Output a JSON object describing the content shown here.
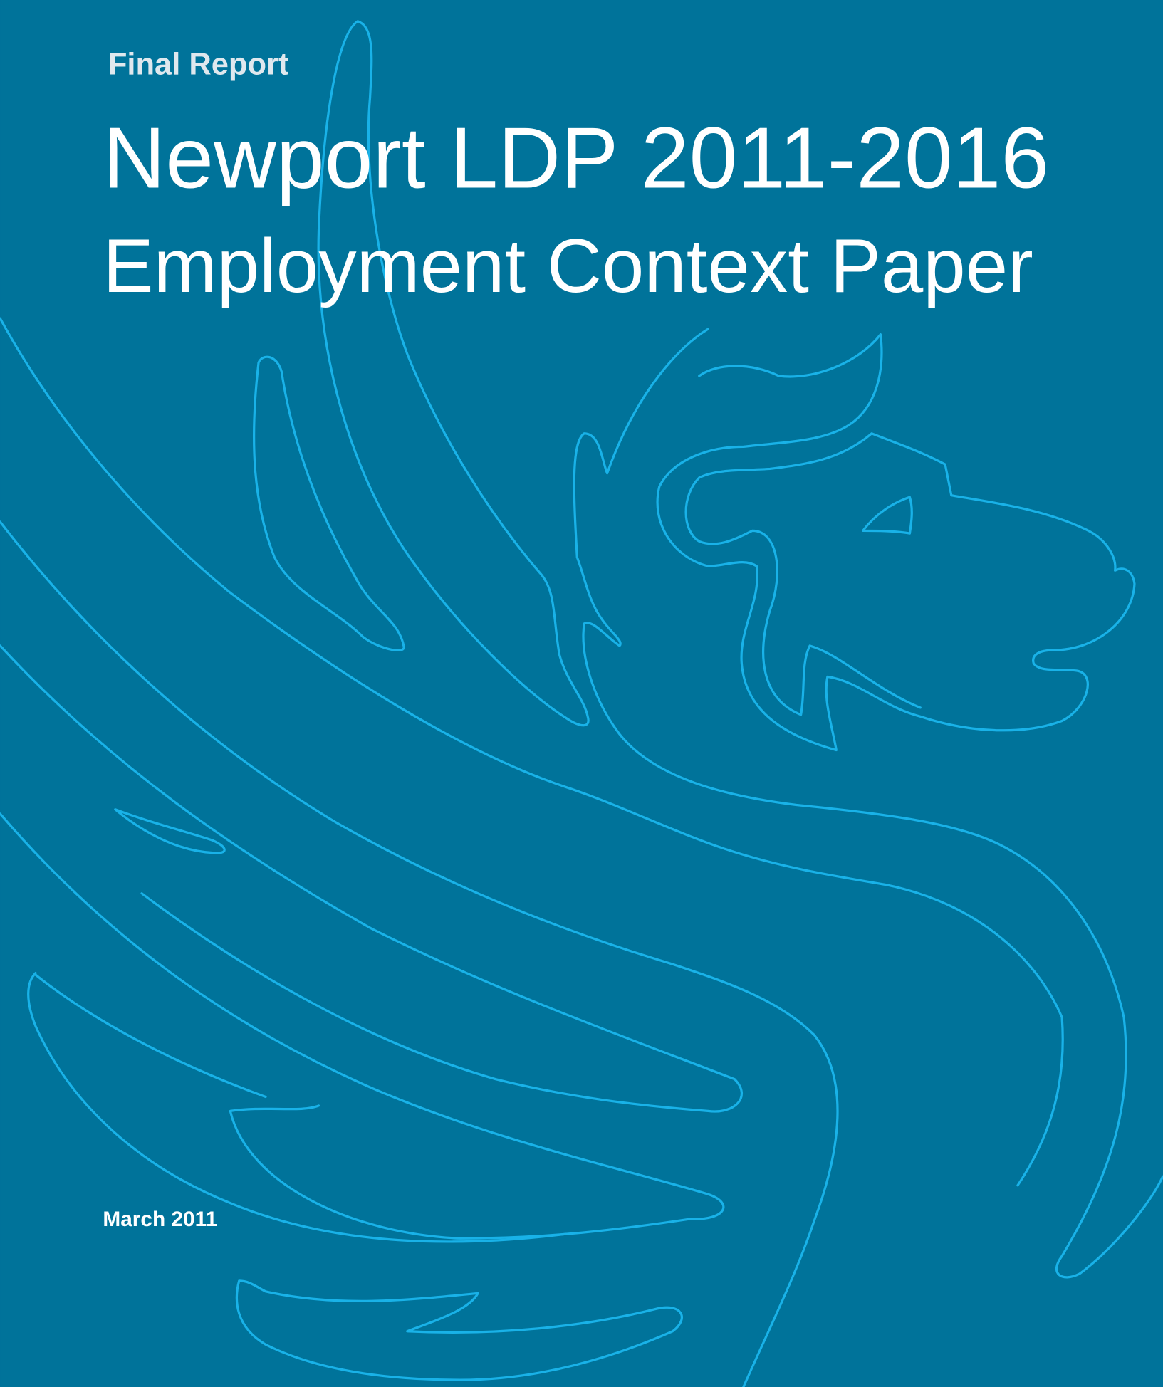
{
  "header": {
    "label": "Final Report",
    "title": "Newport LDP 2011-2016",
    "subtitle": "Employment Context Paper"
  },
  "footer": {
    "date": "March 2011"
  }
}
